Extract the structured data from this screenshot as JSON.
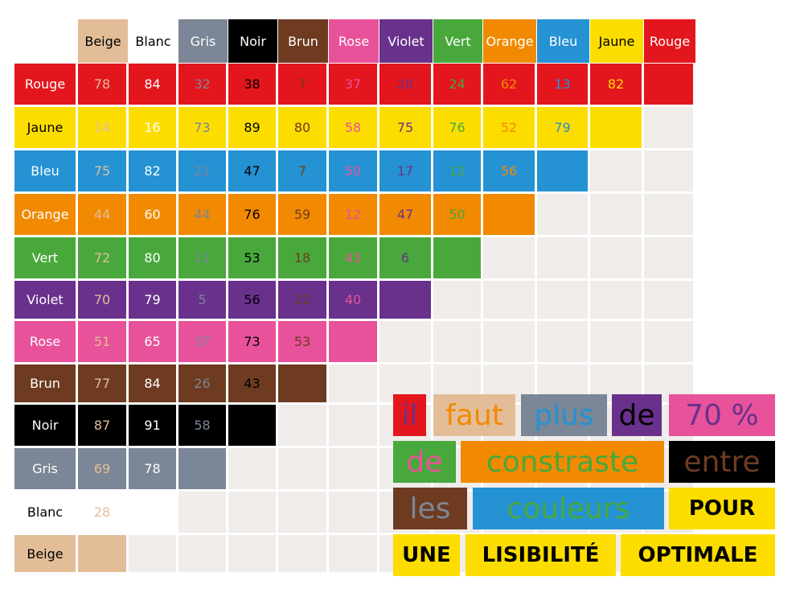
{
  "title": "",
  "colors": {
    "Beige": {
      "bg": "#e3bd98",
      "fg": "#e3bd98"
    },
    "Blanc": {
      "bg": "#ffffff",
      "fg": "#ffffff"
    },
    "Gris": {
      "bg": "#7b8696",
      "fg": "#7b8696"
    },
    "Noir": {
      "bg": "#000000",
      "fg": "#000000"
    },
    "Brun": {
      "bg": "#6e3b21",
      "fg": "#6e3b21"
    },
    "Rose": {
      "bg": "#e8529a",
      "fg": "#e8529a"
    },
    "Violet": {
      "bg": "#6a318c",
      "fg": "#6a318c"
    },
    "Vert": {
      "bg": "#48a83c",
      "fg": "#48a83c"
    },
    "Orange": {
      "bg": "#f18a00",
      "fg": "#f18a00"
    },
    "Bleu": {
      "bg": "#2592d4",
      "fg": "#2592d4"
    },
    "Jaune": {
      "bg": "#fddd00",
      "fg": "#fddd00"
    },
    "Rouge": {
      "bg": "#e3161d",
      "fg": "#e3161d"
    },
    "empty": "#efecea",
    "header_text_light": "#ffffff",
    "header_text_dark": "#000000"
  },
  "column_headers": [
    "Beige",
    "Blanc",
    "Gris",
    "Noir",
    "Brun",
    "Rose",
    "Violet",
    "Vert",
    "Orange",
    "Bleu",
    "Jaune",
    "Rouge"
  ],
  "rows": [
    {
      "label": "Rouge",
      "values": [
        78,
        84,
        32,
        38,
        7,
        37,
        28,
        24,
        62,
        13,
        82
      ]
    },
    {
      "label": "Jaune",
      "values": [
        14,
        16,
        73,
        89,
        80,
        58,
        75,
        76,
        52,
        79
      ]
    },
    {
      "label": "Bleu",
      "values": [
        75,
        82,
        21,
        47,
        7,
        50,
        17,
        12,
        56
      ]
    },
    {
      "label": "Orange",
      "values": [
        44,
        60,
        44,
        76,
        59,
        12,
        47,
        50
      ]
    },
    {
      "label": "Vert",
      "values": [
        72,
        80,
        11,
        53,
        18,
        43,
        6
      ]
    },
    {
      "label": "Violet",
      "values": [
        70,
        79,
        5,
        56,
        22,
        40
      ]
    },
    {
      "label": "Rose",
      "values": [
        51,
        65,
        37,
        73,
        53
      ]
    },
    {
      "label": "Brun",
      "values": [
        77,
        84,
        26,
        43
      ]
    },
    {
      "label": "Noir",
      "values": [
        87,
        91,
        58
      ]
    },
    {
      "label": "Gris",
      "values": [
        69,
        78
      ]
    },
    {
      "label": "Blanc",
      "values": [
        28
      ]
    },
    {
      "label": "Beige",
      "values": []
    }
  ],
  "phrase": [
    {
      "text": "il",
      "bg": "Rouge",
      "fg": "Violet",
      "style": "light"
    },
    {
      "text": "faut",
      "bg": "Beige",
      "fg": "Orange",
      "style": "light"
    },
    {
      "text": "plus",
      "bg": "Gris",
      "fg": "Bleu",
      "style": "light"
    },
    {
      "text": "de",
      "bg": "Violet",
      "fg": "Noir",
      "style": "light"
    },
    {
      "text": "70 %",
      "bg": "Rose",
      "fg": "Violet",
      "style": "light"
    },
    {
      "text": "de",
      "bg": "Vert",
      "fg": "Rose",
      "style": "light"
    },
    {
      "text": "constraste",
      "bg": "Orange",
      "fg": "Vert",
      "style": "light"
    },
    {
      "text": "entre",
      "bg": "Noir",
      "fg": "Brun",
      "style": "light"
    },
    {
      "text": "les",
      "bg": "Brun",
      "fg": "Gris",
      "style": "light"
    },
    {
      "text": "couleurs",
      "bg": "Bleu",
      "fg": "Vert",
      "style": "light"
    },
    {
      "text": "POUR",
      "bg": "Jaune",
      "fg": "Noir",
      "style": "bold"
    },
    {
      "text": "UNE",
      "bg": "Jaune",
      "fg": "Noir",
      "style": "bold"
    },
    {
      "text": "LISIBILITÉ",
      "bg": "Jaune",
      "fg": "Noir",
      "style": "bold"
    },
    {
      "text": "OPTIMALE",
      "bg": "Jaune",
      "fg": "Noir",
      "style": "bold"
    }
  ]
}
